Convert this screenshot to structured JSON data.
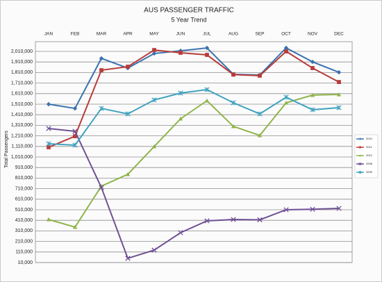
{
  "chart_data": {
    "type": "line",
    "title": "AUS PASSENGER TRAFFIC",
    "subtitle": "5 Year Trend",
    "y_label": "Total Passengers",
    "categories": [
      "JAN",
      "FEB",
      "MAR",
      "APR",
      "MAY",
      "JUN",
      "JUL",
      "AUG",
      "SEP",
      "OCT",
      "NOV",
      "DEC"
    ],
    "ylim": [
      10000,
      2010000
    ],
    "yticks": [
      {
        "value": 10000,
        "label": "10,000"
      },
      {
        "value": 110000,
        "label": "110,000"
      },
      {
        "value": 210000,
        "label": "210,000"
      },
      {
        "value": 310000,
        "label": "310,000"
      },
      {
        "value": 410000,
        "label": "410,000"
      },
      {
        "value": 510000,
        "label": "510,000"
      },
      {
        "value": 610000,
        "label": "610,000"
      },
      {
        "value": 710000,
        "label": "710,000"
      },
      {
        "value": 810000,
        "label": "810,000"
      },
      {
        "value": 910000,
        "label": "910,000"
      },
      {
        "value": 1010000,
        "label": "1,010,000"
      },
      {
        "value": 1110000,
        "label": "1,110,000"
      },
      {
        "value": 1210000,
        "label": "1,210,000"
      },
      {
        "value": 1310000,
        "label": "1,310,000"
      },
      {
        "value": 1410000,
        "label": "1,410,000"
      },
      {
        "value": 1510000,
        "label": "1,510,000"
      },
      {
        "value": 1610000,
        "label": "1,610,000"
      },
      {
        "value": 1710000,
        "label": "1,710,000"
      },
      {
        "value": 1810000,
        "label": "1,810,000"
      },
      {
        "value": 1910000,
        "label": "1,910,000"
      },
      {
        "value": 2010000,
        "label": "2,010,000"
      }
    ],
    "grid": true,
    "legend": "right",
    "series": [
      {
        "name": "2010",
        "color": "#3a72b0",
        "marker": "diamond",
        "values": [
          1510000,
          1470000,
          1944000,
          1852000,
          1990000,
          2016000,
          2043000,
          1793000,
          1786000,
          2043000,
          1911000,
          1812000
        ]
      },
      {
        "name": "2011",
        "color": "#b83c3a",
        "marker": "square",
        "values": [
          1102000,
          1207000,
          1832000,
          1865000,
          2023000,
          1997000,
          1977000,
          1790000,
          1780000,
          2010000,
          1852000,
          1720000
        ]
      },
      {
        "name": "2012",
        "color": "#8fb44a",
        "marker": "triangle",
        "values": [
          418000,
          346000,
          734000,
          846000,
          1109000,
          1372000,
          1543000,
          1300000,
          1214000,
          1523000,
          1596000,
          1602000
        ]
      },
      {
        "name": "2008",
        "color": "#6f4f96",
        "marker": "x",
        "values": [
          1280000,
          1253000,
          720000,
          50000,
          128000,
          293000,
          405000,
          418000,
          415000,
          510000,
          515000,
          523000
        ]
      },
      {
        "name": "2009",
        "color": "#3fa3bf",
        "marker": "star",
        "values": [
          1135000,
          1122000,
          1470000,
          1418000,
          1550000,
          1615000,
          1648000,
          1523000,
          1418000,
          1576000,
          1457000,
          1477000
        ]
      }
    ]
  }
}
